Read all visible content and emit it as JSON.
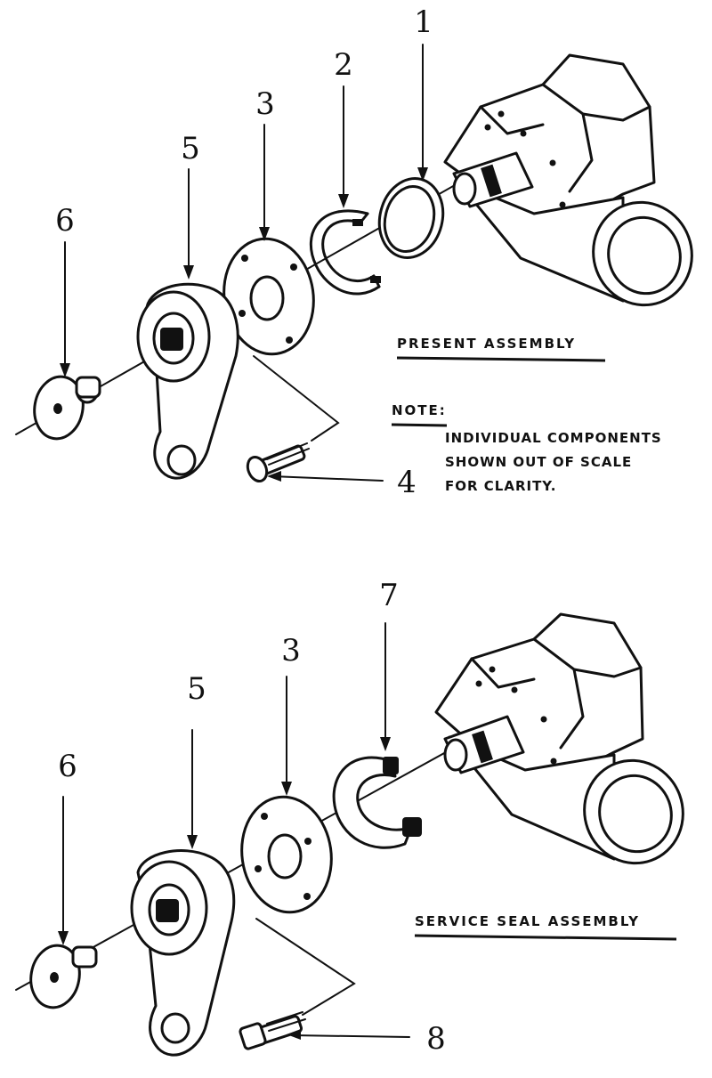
{
  "top": {
    "callouts": [
      "1",
      "2",
      "3",
      "4",
      "5",
      "6"
    ],
    "heading": "PRESENT ASSEMBLY",
    "note_label": "NOTE:",
    "note_lines": [
      "INDIVIDUAL COMPONENTS",
      "SHOWN OUT OF SCALE",
      "FOR CLARITY."
    ]
  },
  "bottom": {
    "callouts": [
      "7",
      "3",
      "5",
      "6",
      "8"
    ],
    "heading": "SERVICE SEAL ASSEMBLY"
  },
  "colors": {
    "ink": "#111111",
    "paper": "#ffffff"
  }
}
